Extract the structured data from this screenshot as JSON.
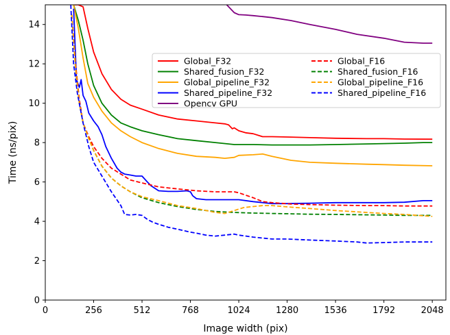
{
  "chart_data": {
    "type": "line",
    "xlabel": "Image width (pix)",
    "ylabel": "Time (ns/pix)",
    "xlim": [
      0,
      2120
    ],
    "ylim": [
      0,
      15
    ],
    "xticks": [
      0,
      256,
      512,
      768,
      1024,
      1280,
      1536,
      1792,
      2048
    ],
    "yticks": [
      0,
      2,
      4,
      6,
      8,
      10,
      12,
      14
    ],
    "grid": false,
    "legend_position": "center-right",
    "series": [
      {
        "name": "Global_F32",
        "color": "#ff0000",
        "style": "solid",
        "x": [
          155,
          175,
          200,
          225,
          256,
          300,
          350,
          400,
          450,
          512,
          600,
          700,
          800,
          900,
          950,
          970,
          990,
          1000,
          1024,
          1060,
          1100,
          1150,
          1200,
          1300,
          1400,
          1536,
          1700,
          1792,
          1900,
          2048
        ],
        "y": [
          15,
          15,
          14.9,
          13.8,
          12.6,
          11.5,
          10.7,
          10.2,
          9.9,
          9.7,
          9.4,
          9.2,
          9.1,
          9.0,
          8.95,
          8.9,
          8.7,
          8.75,
          8.6,
          8.5,
          8.45,
          8.3,
          8.3,
          8.28,
          8.25,
          8.22,
          8.2,
          8.2,
          8.18,
          8.17
        ]
      },
      {
        "name": "Shared_fusion_F32",
        "color": "#008000",
        "style": "solid",
        "x": [
          150,
          175,
          200,
          225,
          256,
          300,
          350,
          400,
          450,
          512,
          600,
          700,
          800,
          900,
          1000,
          1100,
          1200,
          1300,
          1400,
          1536,
          1700,
          1792,
          1900,
          2000,
          2048
        ],
        "y": [
          15,
          14.2,
          13.2,
          12,
          10.9,
          10.0,
          9.4,
          9.0,
          8.8,
          8.6,
          8.4,
          8.2,
          8.1,
          8.0,
          7.9,
          7.9,
          7.88,
          7.88,
          7.88,
          7.9,
          7.93,
          7.95,
          7.97,
          8.0,
          8.0
        ],
        "visible": true
      },
      {
        "name": "Global_pipeline_F32",
        "color": "#ffa500",
        "style": "solid",
        "x": [
          150,
          175,
          200,
          225,
          256,
          300,
          350,
          400,
          450,
          512,
          600,
          700,
          800,
          900,
          950,
          1000,
          1024,
          1100,
          1150,
          1200,
          1300,
          1400,
          1536,
          1700,
          1792,
          1900,
          2048
        ],
        "y": [
          15,
          13.8,
          12.3,
          11,
          10.3,
          9.6,
          9.0,
          8.6,
          8.3,
          8.0,
          7.7,
          7.45,
          7.3,
          7.25,
          7.2,
          7.25,
          7.35,
          7.38,
          7.42,
          7.3,
          7.1,
          7.0,
          6.95,
          6.9,
          6.88,
          6.85,
          6.82
        ]
      },
      {
        "name": "Shared_pipeline_F32",
        "color": "#0000ff",
        "style": "solid",
        "x": [
          150,
          165,
          180,
          190,
          200,
          215,
          230,
          256,
          280,
          300,
          320,
          350,
          380,
          400,
          420,
          450,
          480,
          512,
          540,
          560,
          600,
          650,
          700,
          750,
          768,
          780,
          800,
          850,
          900,
          950,
          1000,
          1024,
          1100,
          1200,
          1280,
          1400,
          1536,
          1700,
          1792,
          1900,
          2000,
          2048
        ],
        "y": [
          14.8,
          11.2,
          10.8,
          11.2,
          10.4,
          10.1,
          9.5,
          9.1,
          8.8,
          8.4,
          7.8,
          7.2,
          6.7,
          6.5,
          6.4,
          6.35,
          6.3,
          6.3,
          6.0,
          5.8,
          5.55,
          5.52,
          5.52,
          5.55,
          5.5,
          5.3,
          5.15,
          5.1,
          5.1,
          5.1,
          5.1,
          5.1,
          5.0,
          4.9,
          4.9,
          4.92,
          4.95,
          4.95,
          4.95,
          4.97,
          5.05,
          5.05
        ]
      },
      {
        "name": "Opencv GPU",
        "color": "#800080",
        "style": "solid",
        "x": [
          960,
          980,
          1000,
          1024,
          1060,
          1100,
          1150,
          1200,
          1300,
          1400,
          1536,
          1650,
          1792,
          1900,
          2000,
          2048
        ],
        "y": [
          15,
          14.8,
          14.6,
          14.5,
          14.48,
          14.45,
          14.4,
          14.35,
          14.2,
          14.0,
          13.75,
          13.5,
          13.3,
          13.1,
          13.05,
          13.05
        ]
      },
      {
        "name": "Global_F16",
        "color": "#ff0000",
        "style": "dashed",
        "x": [
          140,
          160,
          180,
          200,
          230,
          256,
          300,
          350,
          400,
          450,
          512,
          600,
          700,
          800,
          900,
          950,
          1000,
          1024,
          1100,
          1150,
          1200,
          1300,
          1400,
          1536,
          1700,
          1792,
          1900,
          2048
        ],
        "y": [
          14.5,
          12,
          10.2,
          9.0,
          8.3,
          7.8,
          7.2,
          6.7,
          6.4,
          6.1,
          5.95,
          5.75,
          5.65,
          5.55,
          5.5,
          5.5,
          5.5,
          5.45,
          5.2,
          5.0,
          4.95,
          4.88,
          4.85,
          4.82,
          4.8,
          4.8,
          4.78,
          4.78
        ]
      },
      {
        "name": "Shared_fusion_F16",
        "color": "#008000",
        "style": "dashed",
        "x": [
          140,
          160,
          180,
          200,
          230,
          256,
          300,
          350,
          400,
          450,
          512,
          600,
          700,
          800,
          900,
          1000,
          1100,
          1200,
          1300,
          1400,
          1536,
          1700,
          1792,
          1900,
          2048
        ],
        "y": [
          14.5,
          11.8,
          10.0,
          9.0,
          8.2,
          7.6,
          6.8,
          6.2,
          5.8,
          5.5,
          5.2,
          4.95,
          4.75,
          4.6,
          4.5,
          4.45,
          4.42,
          4.4,
          4.38,
          4.36,
          4.35,
          4.33,
          4.32,
          4.3,
          4.3
        ]
      },
      {
        "name": "Global_pipeline_F16",
        "color": "#ffa500",
        "style": "dashed",
        "x": [
          140,
          160,
          180,
          200,
          230,
          256,
          300,
          350,
          400,
          450,
          512,
          600,
          700,
          800,
          850,
          900,
          950,
          1000,
          1050,
          1100,
          1150,
          1200,
          1300,
          1400,
          1536,
          1700,
          1792,
          1900,
          2048
        ],
        "y": [
          14.5,
          11.8,
          10.0,
          9.0,
          8.2,
          7.6,
          6.8,
          6.2,
          5.8,
          5.5,
          5.25,
          5.05,
          4.8,
          4.65,
          4.55,
          4.45,
          4.4,
          4.55,
          4.7,
          4.75,
          4.8,
          4.8,
          4.72,
          4.65,
          4.55,
          4.45,
          4.4,
          4.35,
          4.25
        ]
      },
      {
        "name": "Shared_pipeline_F16",
        "color": "#0000ff",
        "style": "dashed",
        "x": [
          135,
          150,
          170,
          200,
          230,
          256,
          300,
          350,
          400,
          420,
          450,
          480,
          512,
          540,
          570,
          600,
          650,
          700,
          768,
          800,
          850,
          900,
          950,
          1000,
          1024,
          1100,
          1200,
          1280,
          1400,
          1536,
          1650,
          1700,
          1792,
          1900,
          2048
        ],
        "y": [
          15,
          12,
          10.5,
          9.0,
          7.8,
          7.0,
          6.3,
          5.5,
          4.8,
          4.35,
          4.32,
          4.35,
          4.3,
          4.1,
          3.95,
          3.85,
          3.7,
          3.6,
          3.45,
          3.4,
          3.3,
          3.25,
          3.3,
          3.35,
          3.3,
          3.2,
          3.1,
          3.1,
          3.05,
          3.0,
          2.95,
          2.9,
          2.92,
          2.95,
          2.95
        ]
      }
    ]
  }
}
